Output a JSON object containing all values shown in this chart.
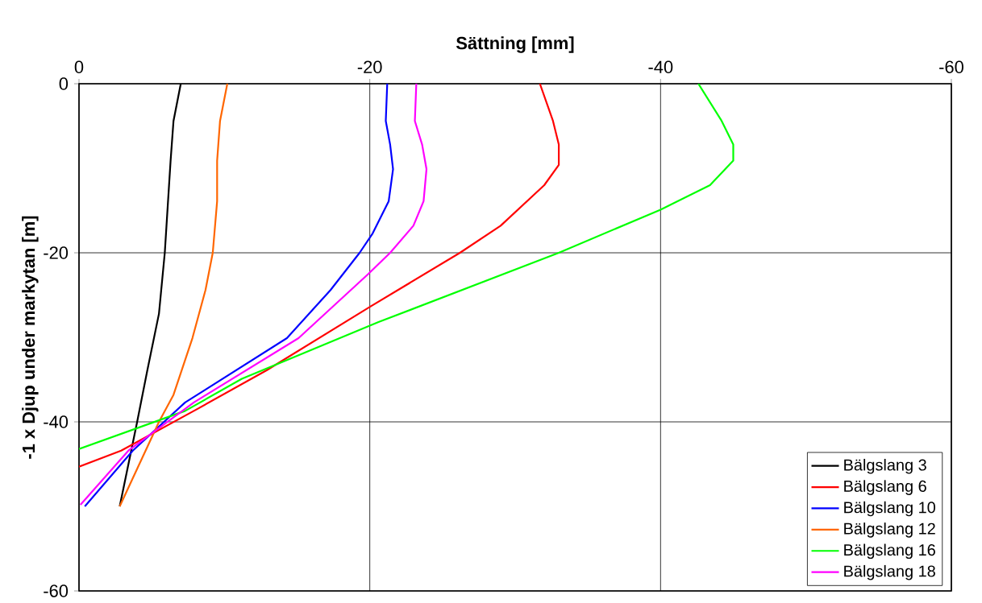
{
  "chart_data": {
    "type": "line",
    "xlabel": "Sättning [mm]",
    "ylabel": "-1 x Djup under markytan [m]",
    "xlim": [
      0,
      -60
    ],
    "ylim": [
      -60,
      0
    ],
    "xticks": [
      0,
      -20,
      -40,
      -60
    ],
    "yticks": [
      0,
      -20,
      -40,
      -60
    ],
    "grid": true,
    "legend": "bottom right",
    "marker": "none",
    "line_style": "solid",
    "series": [
      {
        "name": "Bälgslang 3",
        "color": "#000000",
        "x": [
          -7.0,
          -6.5,
          -6.3,
          -5.9,
          -5.5,
          -4.7,
          -4.0,
          -2.8
        ],
        "values": [
          0,
          -4.4,
          -9.1,
          -20,
          -27.2,
          -33.9,
          -40,
          -50
        ]
      },
      {
        "name": "Bälgslang 6",
        "color": "#ff0000",
        "x": [
          -31.7,
          -32.6,
          -33.0,
          -33.0,
          -32.0,
          -29.0,
          -26.2,
          -20.1,
          -12.9,
          -7.9,
          -2.9,
          0
        ],
        "values": [
          0,
          -4.4,
          -7.2,
          -9.6,
          -12,
          -16.8,
          -20,
          -26.3,
          -33.9,
          -38.7,
          -43.4,
          -45.3
        ]
      },
      {
        "name": "Bälgslang 10",
        "color": "#0000ff",
        "x": [
          -21.2,
          -21.1,
          -21.4,
          -21.6,
          -21.3,
          -20.2,
          -19.3,
          -17.3,
          -14.3,
          -7.3,
          -3.7,
          -0.4
        ],
        "values": [
          0,
          -4.4,
          -7.2,
          -10.1,
          -13.9,
          -17.7,
          -20,
          -24.4,
          -30.1,
          -37.7,
          -43.4,
          -50
        ]
      },
      {
        "name": "Bälgslang 12",
        "color": "#ff6600",
        "x": [
          -10.2,
          -9.7,
          -9.5,
          -9.5,
          -9.2,
          -8.7,
          -7.8,
          -6.5,
          -5.5,
          -2.8
        ],
        "values": [
          0,
          -4.4,
          -9.1,
          -13.9,
          -20,
          -24.4,
          -30.1,
          -36.8,
          -40,
          -50
        ]
      },
      {
        "name": "Bälgslang 16",
        "color": "#00ff00",
        "x": [
          -42.6,
          -44.2,
          -45.0,
          -45.0,
          -43.4,
          -40.0,
          -33.0,
          -20.6,
          -11.2,
          -7.3,
          0
        ],
        "values": [
          0,
          -4.4,
          -7.2,
          -9.1,
          -12,
          -14.9,
          -20,
          -28.2,
          -34.9,
          -38.7,
          -43.2
        ]
      },
      {
        "name": "Bälgslang 18",
        "color": "#ff00ff",
        "x": [
          -23.2,
          -23.1,
          -23.6,
          -23.9,
          -23.7,
          -23.0,
          -21.4,
          -19.9,
          -15.1,
          -7.9,
          -3.4,
          -0.1
        ],
        "values": [
          0,
          -4.4,
          -7.2,
          -10.1,
          -13.9,
          -16.8,
          -20,
          -22.5,
          -30.1,
          -37.7,
          -43.4,
          -49.8
        ]
      }
    ]
  }
}
